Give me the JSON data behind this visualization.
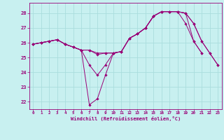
{
  "bg_color": "#c8f0f0",
  "grid_color": "#aadddd",
  "line_color": "#990077",
  "ylim": [
    21.5,
    28.7
  ],
  "xlim": [
    -0.5,
    23.5
  ],
  "yticks": [
    22,
    23,
    24,
    25,
    26,
    27,
    28
  ],
  "xticks": [
    0,
    1,
    2,
    3,
    4,
    5,
    6,
    7,
    8,
    9,
    10,
    11,
    12,
    13,
    14,
    15,
    16,
    17,
    18,
    19,
    20,
    21,
    22,
    23
  ],
  "xlabel": "Windchill (Refroidissement éolien,°C)",
  "line1_x": [
    0,
    1,
    2,
    3,
    4,
    5,
    6,
    7,
    8,
    9,
    10,
    11,
    12,
    13,
    14,
    15,
    16,
    17,
    18,
    19,
    20,
    21
  ],
  "line1_y": [
    25.9,
    26.0,
    26.1,
    26.2,
    25.9,
    25.7,
    25.5,
    21.8,
    22.2,
    23.8,
    25.3,
    25.4,
    26.3,
    26.6,
    27.0,
    27.8,
    28.1,
    28.1,
    28.1,
    28.0,
    26.1,
    25.3
  ],
  "line2_x": [
    0,
    1,
    2,
    3,
    4,
    5,
    6,
    7,
    8,
    9,
    10,
    11,
    12,
    13,
    14,
    15,
    16,
    17,
    18,
    19,
    20,
    21
  ],
  "line2_y": [
    25.9,
    26.0,
    26.1,
    26.2,
    25.9,
    25.7,
    25.5,
    24.5,
    23.8,
    24.5,
    25.3,
    25.4,
    26.3,
    26.6,
    27.0,
    27.8,
    28.1,
    28.1,
    28.1,
    27.3,
    26.1,
    25.3
  ],
  "line3_x": [
    0,
    1,
    2,
    3,
    4,
    5,
    6,
    7,
    8,
    9,
    10,
    11,
    12,
    13,
    14,
    15,
    16,
    17,
    18,
    19,
    20,
    21,
    22,
    23
  ],
  "line3_y": [
    25.9,
    26.0,
    26.1,
    26.2,
    25.9,
    25.7,
    25.5,
    25.5,
    25.3,
    25.3,
    25.3,
    25.4,
    26.3,
    26.6,
    27.0,
    27.8,
    28.1,
    28.1,
    28.1,
    28.0,
    27.3,
    26.1,
    25.3,
    24.5
  ],
  "line4_x": [
    0,
    1,
    2,
    3,
    4,
    5,
    6,
    7,
    8,
    9,
    10,
    11,
    12,
    13,
    14,
    15,
    16,
    17,
    18,
    19,
    20,
    21,
    22,
    23
  ],
  "line4_y": [
    25.9,
    26.0,
    26.1,
    26.2,
    25.9,
    25.7,
    25.5,
    25.5,
    25.2,
    25.3,
    25.3,
    25.4,
    26.3,
    26.6,
    27.0,
    27.8,
    28.1,
    28.1,
    28.1,
    28.0,
    27.3,
    26.1,
    25.3,
    24.5
  ]
}
